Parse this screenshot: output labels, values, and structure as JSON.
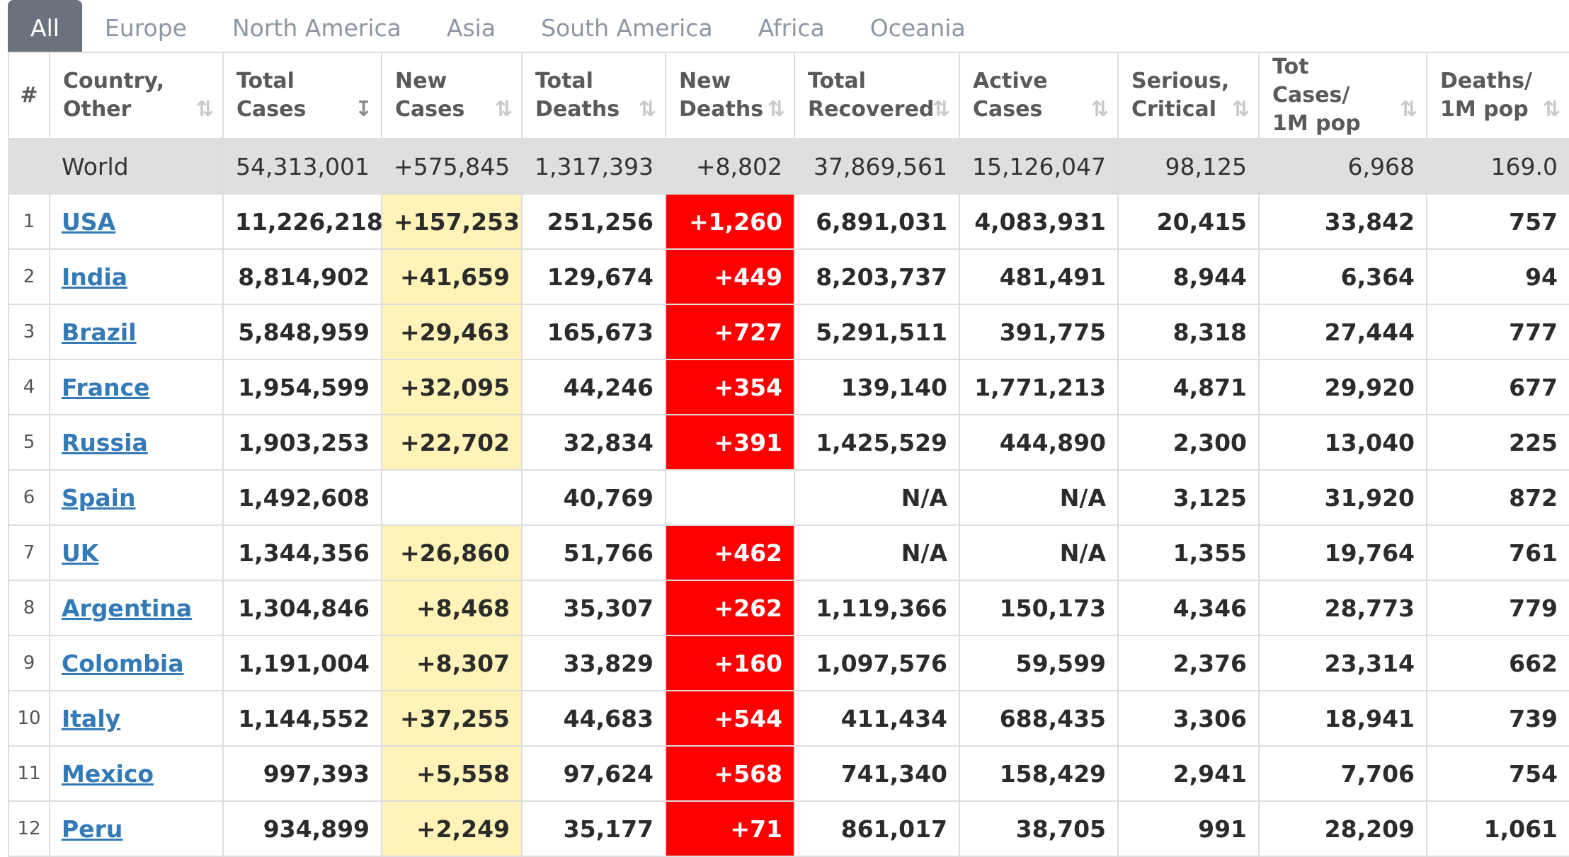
{
  "tabs": [
    "All",
    "Europe",
    "North America",
    "Asia",
    "South America",
    "Africa",
    "Oceania"
  ],
  "active_tab": "All",
  "sort_icon": "⇅",
  "sort_icon_active": "↧",
  "headers": {
    "idx": "#",
    "country": "Country, Other",
    "total_cases": "Total Cases",
    "new_cases": "New Cases",
    "total_deaths": "Total Deaths",
    "new_deaths": "New Deaths",
    "total_recovered": "Total Recovered",
    "active_cases": "Active Cases",
    "serious": "Serious, Critical",
    "cases_per_m": "Tot Cases/ 1M pop",
    "deaths_per_m": "Deaths/ 1M pop"
  },
  "world": {
    "country": "World",
    "total_cases": "54,313,001",
    "new_cases": "+575,845",
    "total_deaths": "1,317,393",
    "new_deaths": "+8,802",
    "total_recovered": "37,869,561",
    "active_cases": "15,126,047",
    "serious": "98,125",
    "cases_per_m": "6,968",
    "deaths_per_m": "169.0"
  },
  "rows": [
    {
      "idx": "1",
      "country": "USA",
      "total_cases": "11,226,218",
      "new_cases": "+157,253",
      "total_deaths": "251,256",
      "new_deaths": "+1,260",
      "total_recovered": "6,891,031",
      "active_cases": "4,083,931",
      "serious": "20,415",
      "cases_per_m": "33,842",
      "deaths_per_m": "757"
    },
    {
      "idx": "2",
      "country": "India",
      "total_cases": "8,814,902",
      "new_cases": "+41,659",
      "total_deaths": "129,674",
      "new_deaths": "+449",
      "total_recovered": "8,203,737",
      "active_cases": "481,491",
      "serious": "8,944",
      "cases_per_m": "6,364",
      "deaths_per_m": "94"
    },
    {
      "idx": "3",
      "country": "Brazil",
      "total_cases": "5,848,959",
      "new_cases": "+29,463",
      "total_deaths": "165,673",
      "new_deaths": "+727",
      "total_recovered": "5,291,511",
      "active_cases": "391,775",
      "serious": "8,318",
      "cases_per_m": "27,444",
      "deaths_per_m": "777"
    },
    {
      "idx": "4",
      "country": "France",
      "total_cases": "1,954,599",
      "new_cases": "+32,095",
      "total_deaths": "44,246",
      "new_deaths": "+354",
      "total_recovered": "139,140",
      "active_cases": "1,771,213",
      "serious": "4,871",
      "cases_per_m": "29,920",
      "deaths_per_m": "677"
    },
    {
      "idx": "5",
      "country": "Russia",
      "total_cases": "1,903,253",
      "new_cases": "+22,702",
      "total_deaths": "32,834",
      "new_deaths": "+391",
      "total_recovered": "1,425,529",
      "active_cases": "444,890",
      "serious": "2,300",
      "cases_per_m": "13,040",
      "deaths_per_m": "225"
    },
    {
      "idx": "6",
      "country": "Spain",
      "total_cases": "1,492,608",
      "new_cases": "",
      "total_deaths": "40,769",
      "new_deaths": "",
      "total_recovered": "N/A",
      "active_cases": "N/A",
      "serious": "3,125",
      "cases_per_m": "31,920",
      "deaths_per_m": "872"
    },
    {
      "idx": "7",
      "country": "UK",
      "total_cases": "1,344,356",
      "new_cases": "+26,860",
      "total_deaths": "51,766",
      "new_deaths": "+462",
      "total_recovered": "N/A",
      "active_cases": "N/A",
      "serious": "1,355",
      "cases_per_m": "19,764",
      "deaths_per_m": "761"
    },
    {
      "idx": "8",
      "country": "Argentina",
      "total_cases": "1,304,846",
      "new_cases": "+8,468",
      "total_deaths": "35,307",
      "new_deaths": "+262",
      "total_recovered": "1,119,366",
      "active_cases": "150,173",
      "serious": "4,346",
      "cases_per_m": "28,773",
      "deaths_per_m": "779"
    },
    {
      "idx": "9",
      "country": "Colombia",
      "total_cases": "1,191,004",
      "new_cases": "+8,307",
      "total_deaths": "33,829",
      "new_deaths": "+160",
      "total_recovered": "1,097,576",
      "active_cases": "59,599",
      "serious": "2,376",
      "cases_per_m": "23,314",
      "deaths_per_m": "662"
    },
    {
      "idx": "10",
      "country": "Italy",
      "total_cases": "1,144,552",
      "new_cases": "+37,255",
      "total_deaths": "44,683",
      "new_deaths": "+544",
      "total_recovered": "411,434",
      "active_cases": "688,435",
      "serious": "3,306",
      "cases_per_m": "18,941",
      "deaths_per_m": "739"
    },
    {
      "idx": "11",
      "country": "Mexico",
      "total_cases": "997,393",
      "new_cases": "+5,558",
      "total_deaths": "97,624",
      "new_deaths": "+568",
      "total_recovered": "741,340",
      "active_cases": "158,429",
      "serious": "2,941",
      "cases_per_m": "7,706",
      "deaths_per_m": "754"
    },
    {
      "idx": "12",
      "country": "Peru",
      "total_cases": "934,899",
      "new_cases": "+2,249",
      "total_deaths": "35,177",
      "new_deaths": "+71",
      "total_recovered": "861,017",
      "active_cases": "38,705",
      "serious": "991",
      "cases_per_m": "28,209",
      "deaths_per_m": "1,061"
    }
  ],
  "colors": {
    "new_cases_bg": "#fff3b8",
    "new_deaths_bg": "#ff0000",
    "world_bg": "#dfdfdf",
    "link": "#337ab7",
    "active_tab_bg": "#6a737d"
  }
}
